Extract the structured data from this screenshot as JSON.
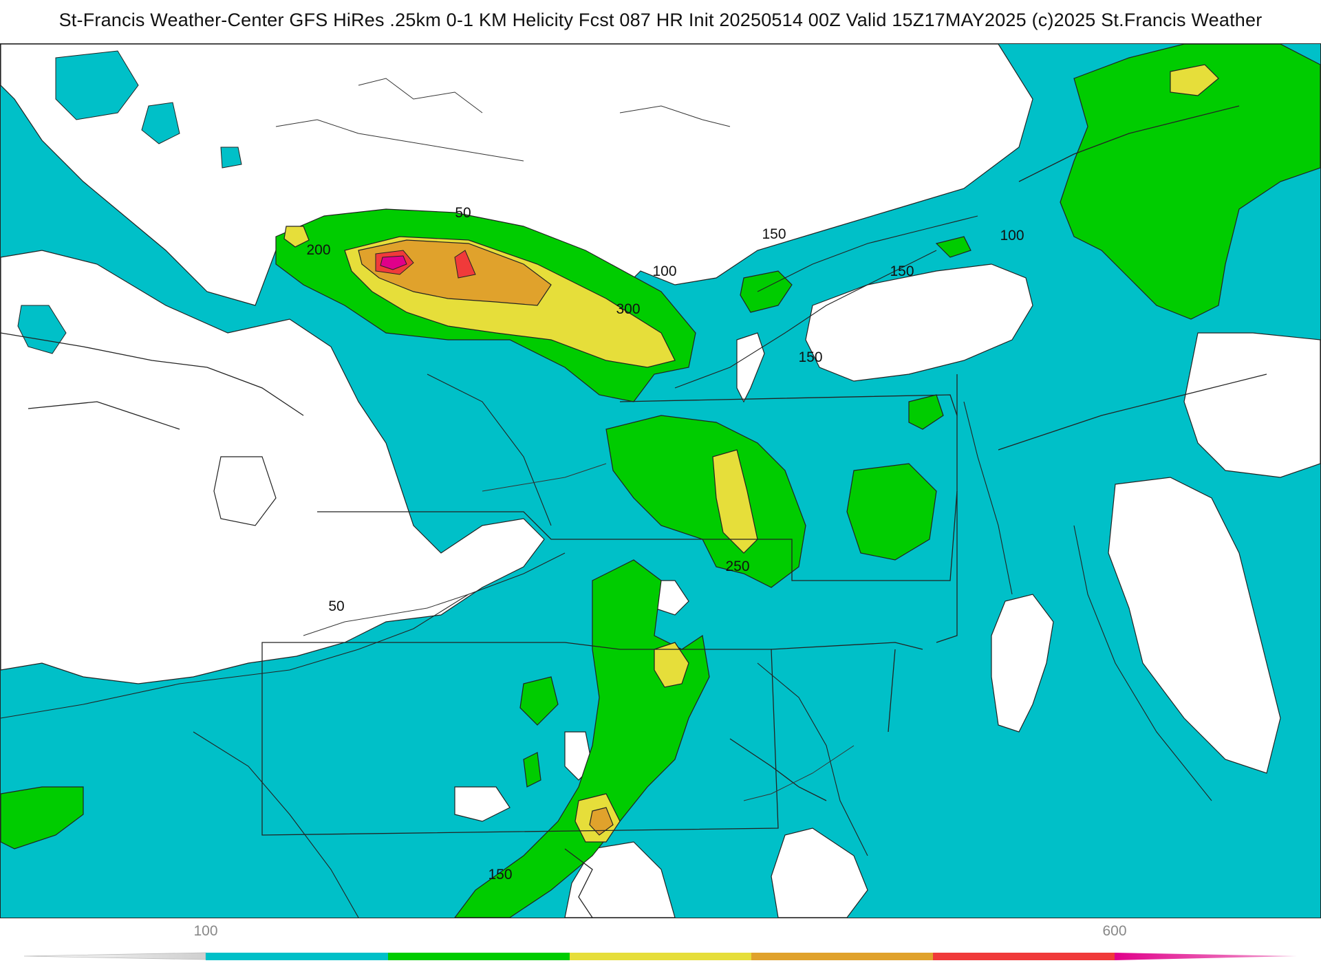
{
  "title": "St-Francis Weather-Center GFS HiRes .25km 0-1 KM Helicity Fcst 087 HR Init 20250514 00Z  Valid 15Z17MAY2025    (c)2025 St.Francis Weather",
  "map": {
    "field": "0-1 KM Helicity",
    "contour_labels": [
      "50",
      "200",
      "100",
      "300",
      "150",
      "150",
      "150",
      "100",
      "250",
      "50",
      "150"
    ]
  },
  "colorbar": {
    "ticks": [
      "100",
      "600"
    ],
    "colors": [
      "#cfcfcf",
      "#00c0c8",
      "#00cc00",
      "#e6de3a",
      "#e0a22c",
      "#f03a3a",
      "#e0008a"
    ]
  },
  "palette": {
    "low": "#00c0c8",
    "mid": "#00cc00",
    "yellow": "#e6de3a",
    "orange": "#e0a22c",
    "red": "#f03a3a",
    "magenta": "#e0008a"
  }
}
